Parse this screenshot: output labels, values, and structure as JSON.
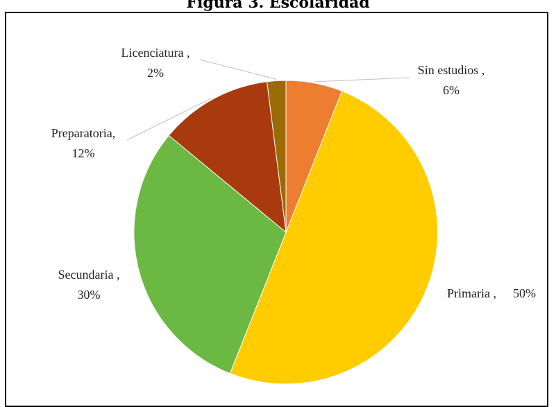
{
  "chart_data": {
    "type": "pie",
    "title": "Figura 3. Escolaridad",
    "slices": [
      {
        "name": "Sin estudios ,",
        "value": 6,
        "percent_label": "6%",
        "color": "#ED7D31"
      },
      {
        "name": "Primaria ,",
        "value": 50,
        "percent_label": "50%",
        "color": "#FFCC00"
      },
      {
        "name": "Secundaria ,",
        "value": 30,
        "percent_label": "30%",
        "color": "#6BB842"
      },
      {
        "name": "Preparatoria,",
        "value": 12,
        "percent_label": "12%",
        "color": "#A93A0D"
      },
      {
        "name": "Licenciatura ,",
        "value": 2,
        "percent_label": "2%",
        "color": "#9B6B07"
      }
    ],
    "start_angle_deg": 0,
    "direction": "clockwise",
    "legend": "none",
    "label_style": "outside with leader lines"
  }
}
